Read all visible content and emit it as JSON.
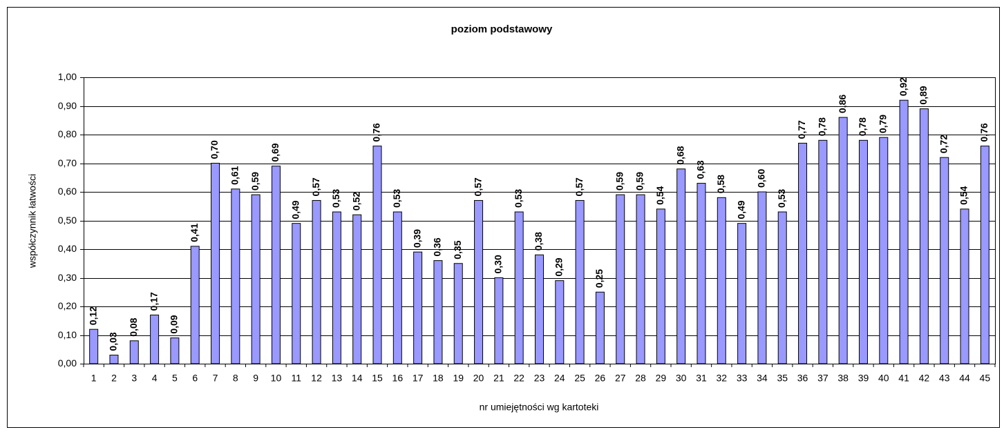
{
  "chart_data": {
    "type": "bar",
    "title": "poziom podstawowy",
    "x_label": "nr umiejętności wg kartoteki",
    "y_label": "współczynnik łatwości",
    "categories": [
      "1",
      "2",
      "3",
      "4",
      "5",
      "6",
      "7",
      "8",
      "9",
      "10",
      "11",
      "12",
      "13",
      "14",
      "15",
      "16",
      "17",
      "18",
      "19",
      "20",
      "21",
      "22",
      "23",
      "24",
      "25",
      "26",
      "27",
      "28",
      "29",
      "30",
      "31",
      "32",
      "33",
      "34",
      "35",
      "36",
      "37",
      "38",
      "39",
      "40",
      "41",
      "42",
      "43",
      "44",
      "45"
    ],
    "values": [
      0.12,
      0.03,
      0.08,
      0.17,
      0.09,
      0.41,
      0.7,
      0.61,
      0.59,
      0.69,
      0.49,
      0.57,
      0.53,
      0.52,
      0.76,
      0.53,
      0.39,
      0.36,
      0.35,
      0.57,
      0.3,
      0.53,
      0.38,
      0.29,
      0.57,
      0.25,
      0.59,
      0.59,
      0.54,
      0.68,
      0.63,
      0.58,
      0.49,
      0.6,
      0.53,
      0.77,
      0.78,
      0.86,
      0.78,
      0.79,
      0.92,
      0.89,
      0.72,
      0.54,
      0.76
    ],
    "value_labels": [
      "0,12",
      "0,03",
      "0,08",
      "0,17",
      "0,09",
      "0,41",
      "0,70",
      "0,61",
      "0,59",
      "0,69",
      "0,49",
      "0,57",
      "0,53",
      "0,52",
      "0,76",
      "0,53",
      "0,39",
      "0,36",
      "0,35",
      "0,57",
      "0,30",
      "0,53",
      "0,38",
      "0,29",
      "0,57",
      "0,25",
      "0,59",
      "0,59",
      "0,54",
      "0,68",
      "0,63",
      "0,58",
      "0,49",
      "0,60",
      "0,53",
      "0,77",
      "0,78",
      "0,86",
      "0,78",
      "0,79",
      "0,92",
      "0,89",
      "0,72",
      "0,54",
      "0,76"
    ],
    "color": "#9999ff",
    "ylim": [
      0,
      1
    ],
    "yticks": [
      {
        "value": 0,
        "label": "0,00"
      },
      {
        "value": 0.1,
        "label": "0,10"
      },
      {
        "value": 0.2,
        "label": "0,20"
      },
      {
        "value": 0.3,
        "label": "0,30"
      },
      {
        "value": 0.4,
        "label": "0,40"
      },
      {
        "value": 0.5,
        "label": "0,50"
      },
      {
        "value": 0.6,
        "label": "0,60"
      },
      {
        "value": 0.7,
        "label": "0,70"
      },
      {
        "value": 0.8,
        "label": "0,80"
      },
      {
        "value": 0.9,
        "label": "0,90"
      },
      {
        "value": 1,
        "label": "1,00"
      }
    ],
    "grid": true
  }
}
